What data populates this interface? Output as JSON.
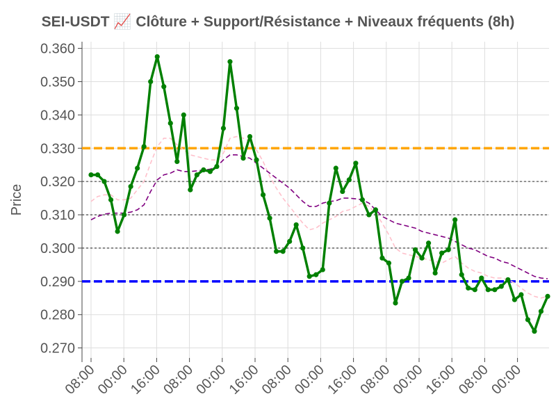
{
  "title": "SEI-USDT 📈 Clôture + Support/Résistance + Niveaux fréquents (8h)",
  "chart_data": {
    "type": "line",
    "title": "SEI-USDT 📈 Clôture + Support/Résistance + Niveaux fréquents (8h)",
    "xlabel": "",
    "ylabel": "Price",
    "ylim": [
      0.267,
      0.362
    ],
    "y_ticks": [
      "0.270",
      "0.280",
      "0.290",
      "0.300",
      "0.310",
      "0.320",
      "0.330",
      "0.340",
      "0.350",
      "0.360"
    ],
    "x_tick_labels": [
      "08:00",
      "00:00",
      "16:00",
      "08:00",
      "00:00",
      "16:00",
      "08:00",
      "00:00",
      "16:00",
      "08:00",
      "00:00",
      "16:00",
      "08:00",
      "00:00"
    ],
    "grid": true,
    "series": [
      {
        "role": "close",
        "color": "#008000",
        "values": [
          0.322,
          0.322,
          0.32,
          0.3145,
          0.305,
          0.31,
          0.3185,
          0.324,
          0.3305,
          0.35,
          0.3575,
          0.3485,
          0.3375,
          0.326,
          0.34,
          0.3175,
          0.322,
          0.3235,
          0.323,
          0.3245,
          0.336,
          0.356,
          0.342,
          0.327,
          0.3335,
          0.3265,
          0.316,
          0.309,
          0.299,
          0.299,
          0.302,
          0.307,
          0.3,
          0.2915,
          0.292,
          0.2935,
          0.3135,
          0.324,
          0.317,
          0.3205,
          0.3255,
          0.3145,
          0.31,
          0.3115,
          0.297,
          0.2955,
          0.2835,
          0.29,
          0.291,
          0.2995,
          0.297,
          0.3015,
          0.2925,
          0.2985,
          0.2995,
          0.3085,
          0.292,
          0.288,
          0.2875,
          0.291,
          0.2875,
          0.2875,
          0.2885,
          0.2905,
          0.2845,
          0.286,
          0.2785,
          0.275,
          0.281,
          0.2855
        ]
      },
      {
        "role": "moving-average-long",
        "color": "#800080",
        "values": [
          0.3085,
          0.3095,
          0.3102,
          0.3105,
          0.3105,
          0.3105,
          0.3108,
          0.3115,
          0.313,
          0.317,
          0.3205,
          0.322,
          0.3225,
          0.3235,
          0.323,
          0.323,
          0.3232,
          0.3235,
          0.3237,
          0.3245,
          0.3265,
          0.328,
          0.328,
          0.3275,
          0.327,
          0.3255,
          0.324,
          0.3225,
          0.321,
          0.3195,
          0.318,
          0.316,
          0.314,
          0.3125,
          0.3125,
          0.3135,
          0.314,
          0.3142,
          0.315,
          0.315,
          0.3148,
          0.3145,
          0.3135,
          0.3115,
          0.3095,
          0.3085,
          0.3075,
          0.307,
          0.3065,
          0.306,
          0.305,
          0.3045,
          0.304,
          0.3035,
          0.303,
          0.302,
          0.301,
          0.3,
          0.2995,
          0.2985,
          0.2975,
          0.297,
          0.296,
          0.2955,
          0.2945,
          0.2935,
          0.2925,
          0.2915,
          0.291,
          0.2908
        ]
      },
      {
        "role": "moving-average-short",
        "color": "#ffc0cb",
        "values": [
          0.314,
          0.3155,
          0.316,
          0.316,
          0.3145,
          0.3145,
          0.315,
          0.3175,
          0.32,
          0.3255,
          0.3305,
          0.333,
          0.333,
          0.331,
          0.3295,
          0.328,
          0.3275,
          0.327,
          0.3265,
          0.3265,
          0.3285,
          0.333,
          0.3335,
          0.333,
          0.332,
          0.3295,
          0.326,
          0.3215,
          0.318,
          0.315,
          0.3125,
          0.31,
          0.3075,
          0.3055,
          0.306,
          0.3075,
          0.3085,
          0.3095,
          0.311,
          0.3115,
          0.3125,
          0.3135,
          0.3125,
          0.3105,
          0.3075,
          0.304,
          0.3,
          0.2985,
          0.298,
          0.2975,
          0.297,
          0.2965,
          0.296,
          0.2955,
          0.2965,
          0.2975,
          0.2955,
          0.294,
          0.293,
          0.2925,
          0.2915,
          0.291,
          0.291,
          0.2905,
          0.2895,
          0.288,
          0.2865,
          0.2855,
          0.285,
          0.2855
        ]
      }
    ],
    "horizontal_levels": [
      {
        "role": "resistance",
        "value": 0.33,
        "color": "#ffa500",
        "style": "dashed"
      },
      {
        "role": "support",
        "value": 0.29,
        "color": "#0000ff",
        "style": "dashed"
      },
      {
        "role": "frequent-level",
        "value": 0.32,
        "color": "#555555",
        "style": "dotted"
      },
      {
        "role": "frequent-level",
        "value": 0.31,
        "color": "#555555",
        "style": "dotted"
      },
      {
        "role": "frequent-level",
        "value": 0.3,
        "color": "#555555",
        "style": "dotted"
      }
    ]
  }
}
